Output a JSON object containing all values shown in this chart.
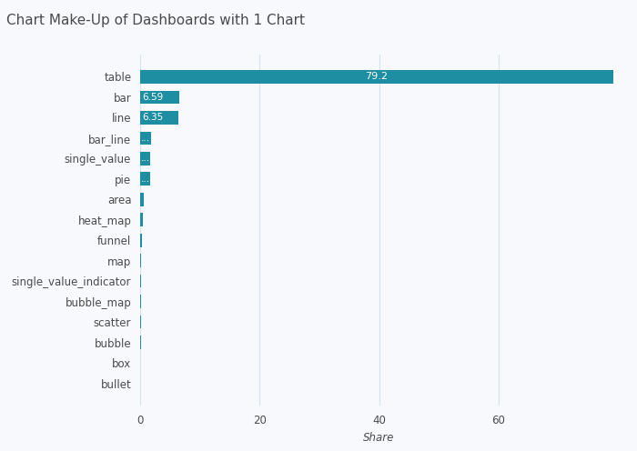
{
  "title": "Chart Make-Up of Dashboards with 1 Chart",
  "categories": [
    "table",
    "bar",
    "line",
    "bar_line",
    "single_value",
    "pie",
    "area",
    "heat_map",
    "funnel",
    "map",
    "single_value_indicator",
    "bubble_map",
    "scatter",
    "bubble",
    "box",
    "bullet"
  ],
  "values": [
    79.2,
    6.59,
    6.35,
    1.8,
    1.7,
    1.6,
    0.55,
    0.45,
    0.32,
    0.18,
    0.15,
    0.12,
    0.1,
    0.08,
    0.06,
    0.04
  ],
  "bar_color": "#1e8fa3",
  "xlabel": "Share",
  "xlim": [
    0,
    80
  ],
  "xticks": [
    0,
    20,
    40,
    60
  ],
  "background_color": "#f7f9fc",
  "title_fontsize": 11,
  "tick_fontsize": 8.5,
  "label_fontsize": 8,
  "grid_color": "#d5e5ef",
  "text_color": "#4a4a4a",
  "bar_height": 0.65
}
